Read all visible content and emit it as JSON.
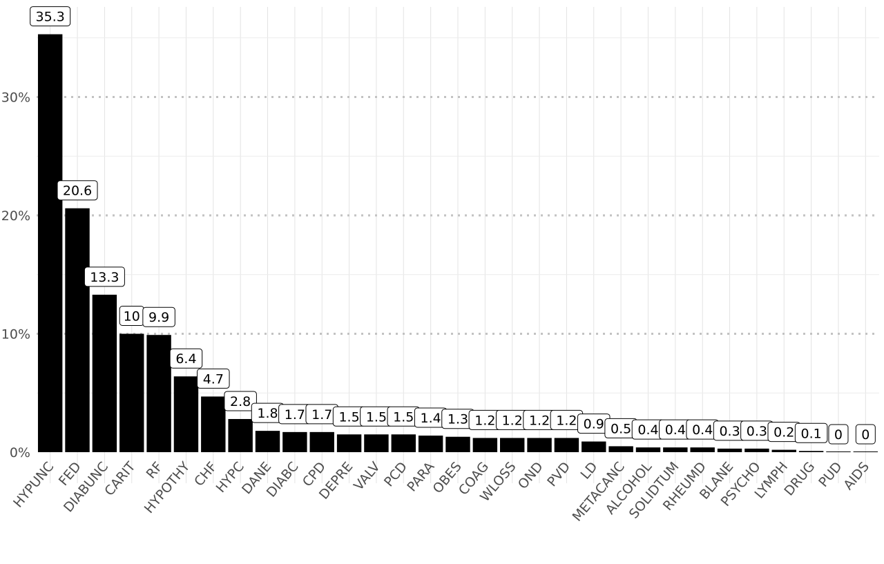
{
  "chart_data": {
    "type": "bar",
    "title": "",
    "xlabel": "",
    "ylabel": "",
    "ylim": [
      0,
      37
    ],
    "y_ticks": [
      0,
      10,
      20,
      30
    ],
    "y_tick_labels": [
      "0%",
      "10%",
      "20%",
      "30%"
    ],
    "categories": [
      "HYPUNC",
      "FED",
      "DIABUNC",
      "CARIT",
      "RF",
      "HYPOTHY",
      "CHF",
      "HYPC",
      "DANE",
      "DIABC",
      "CPD",
      "DEPRE",
      "VALV",
      "PCD",
      "PARA",
      "OBES",
      "COAG",
      "WLOSS",
      "OND",
      "PVD",
      "LD",
      "METACANC",
      "ALCOHOL",
      "SOLIDTUM",
      "RHEUMD",
      "BLANE",
      "PSYCHO",
      "LYMPH",
      "DRUG",
      "PUD",
      "AIDS"
    ],
    "values": [
      35.3,
      20.6,
      13.3,
      10,
      9.9,
      6.4,
      4.7,
      2.8,
      1.8,
      1.7,
      1.7,
      1.5,
      1.5,
      1.5,
      1.4,
      1.3,
      1.2,
      1.2,
      1.2,
      1.2,
      0.9,
      0.5,
      0.4,
      0.4,
      0.4,
      0.3,
      0.3,
      0.2,
      0.1,
      0,
      0
    ],
    "labels": [
      "35.3",
      "20.6",
      "13.3",
      "10",
      "9.9",
      "6.4",
      "4.7",
      "2.8",
      "1.8",
      "1.7",
      "1.7",
      "1.5",
      "1.5",
      "1.5",
      "1.4",
      "1.3",
      "1.2",
      "1.2",
      "1.2",
      "1.2",
      "0.9",
      "0.5",
      "0.4",
      "0.4",
      "0.4",
      "0.3",
      "0.3",
      "0.2",
      "0.1",
      "0",
      "0"
    ],
    "bar_color": "#000000",
    "grid": true,
    "major_grid_style": "dotted",
    "legend": "none"
  }
}
